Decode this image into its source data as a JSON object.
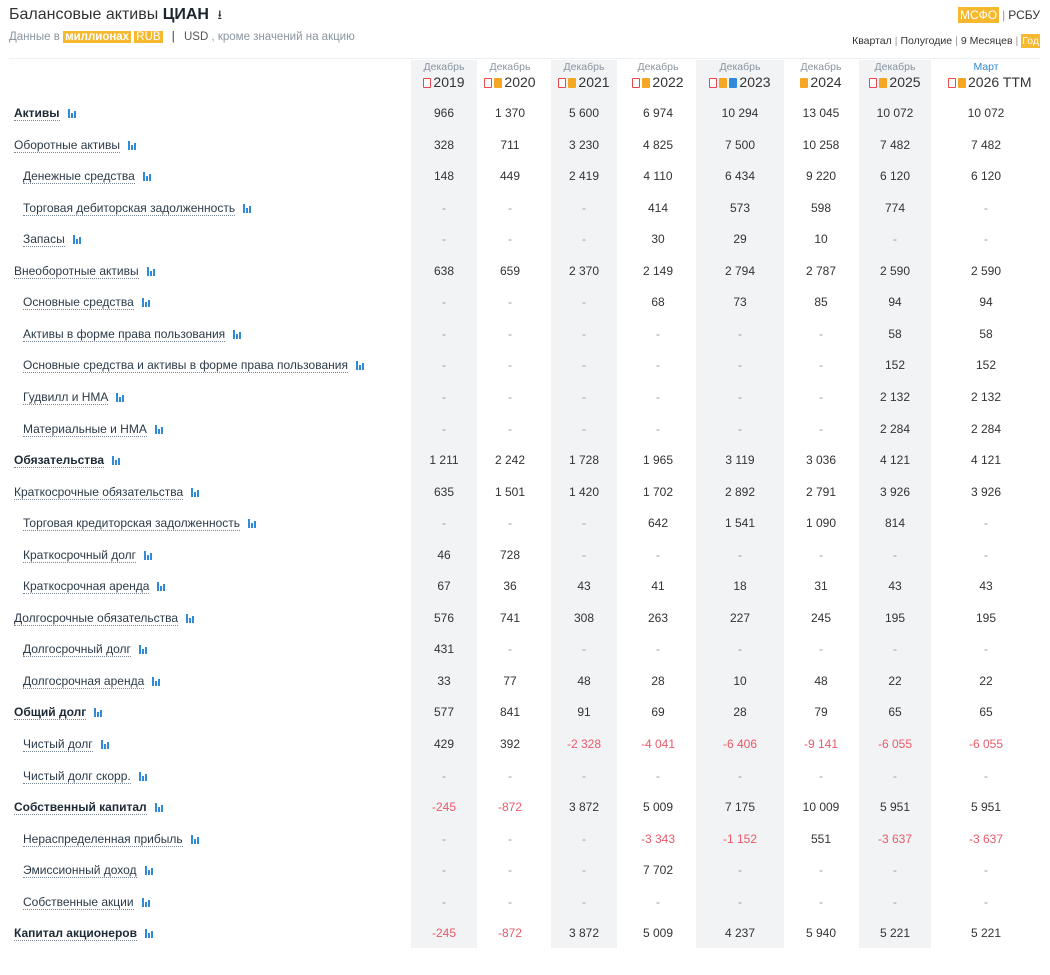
{
  "header": {
    "title": "Балансовые активы",
    "company": "ЦИАН",
    "subtitle_prefix": "Данные в",
    "units": "миллионах",
    "currency_rub": "RUB",
    "sep": "|",
    "currency_usd": "USD",
    "subtitle_suffix": ", кроме значений на акцию",
    "standards": [
      "МСФО",
      "РСБУ"
    ],
    "periods": [
      "Квартал",
      "Полугодие",
      "9 Месяцев",
      "Год"
    ]
  },
  "columns": [
    {
      "month": "Декабрь",
      "year": "2019",
      "icons": [
        "pdf"
      ]
    },
    {
      "month": "Декабрь",
      "year": "2020",
      "icons": [
        "pdf",
        "p"
      ]
    },
    {
      "month": "Декабрь",
      "year": "2021",
      "icons": [
        "pdf",
        "p"
      ]
    },
    {
      "month": "Декабрь",
      "year": "2022",
      "icons": [
        "pdf",
        "p"
      ]
    },
    {
      "month": "Декабрь",
      "year": "2023",
      "icons": [
        "pdf",
        "p",
        "x"
      ]
    },
    {
      "month": "Декабрь",
      "year": "2024",
      "icons": [
        "p"
      ]
    },
    {
      "month": "Декабрь",
      "year": "2025",
      "icons": [
        "pdf",
        "p"
      ]
    },
    {
      "month": "Март",
      "year": "2026 TTM",
      "icons": [
        "pdf",
        "p"
      ]
    }
  ],
  "rows": [
    {
      "label": "Активы",
      "bold": true,
      "indent": 0,
      "values": [
        "966",
        "1 370",
        "5 600",
        "6 974",
        "10 294",
        "13 045",
        "10 072",
        "10 072"
      ]
    },
    {
      "label": "Оборотные активы",
      "bold": false,
      "indent": 0,
      "values": [
        "328",
        "711",
        "3 230",
        "4 825",
        "7 500",
        "10 258",
        "7 482",
        "7 482"
      ]
    },
    {
      "label": "Денежные средства",
      "bold": false,
      "indent": 1,
      "values": [
        "148",
        "449",
        "2 419",
        "4 110",
        "6 434",
        "9 220",
        "6 120",
        "6 120"
      ]
    },
    {
      "label": "Торговая дебиторская задолженность",
      "bold": false,
      "indent": 1,
      "values": [
        "-",
        "-",
        "-",
        "414",
        "573",
        "598",
        "774",
        "-"
      ]
    },
    {
      "label": "Запасы",
      "bold": false,
      "indent": 1,
      "values": [
        "-",
        "-",
        "-",
        "30",
        "29",
        "10",
        "-",
        "-"
      ]
    },
    {
      "label": "Внеоборотные активы",
      "bold": false,
      "indent": 0,
      "values": [
        "638",
        "659",
        "2 370",
        "2 149",
        "2 794",
        "2 787",
        "2 590",
        "2 590"
      ]
    },
    {
      "label": "Основные средства",
      "bold": false,
      "indent": 1,
      "values": [
        "-",
        "-",
        "-",
        "68",
        "73",
        "85",
        "94",
        "94"
      ]
    },
    {
      "label": "Активы в форме права пользования",
      "bold": false,
      "indent": 1,
      "values": [
        "-",
        "-",
        "-",
        "-",
        "-",
        "-",
        "58",
        "58"
      ]
    },
    {
      "label": "Основные средства и активы в форме права пользования",
      "bold": false,
      "indent": 1,
      "values": [
        "-",
        "-",
        "-",
        "-",
        "-",
        "-",
        "152",
        "152"
      ]
    },
    {
      "label": "Гудвилл и НМА",
      "bold": false,
      "indent": 1,
      "values": [
        "-",
        "-",
        "-",
        "-",
        "-",
        "-",
        "2 132",
        "2 132"
      ]
    },
    {
      "label": "Материальные и НМА",
      "bold": false,
      "indent": 1,
      "values": [
        "-",
        "-",
        "-",
        "-",
        "-",
        "-",
        "2 284",
        "2 284"
      ]
    },
    {
      "label": "Обязательства",
      "bold": true,
      "indent": 0,
      "values": [
        "1 211",
        "2 242",
        "1 728",
        "1 965",
        "3 119",
        "3 036",
        "4 121",
        "4 121"
      ]
    },
    {
      "label": "Краткосрочные обязательства",
      "bold": false,
      "indent": 0,
      "values": [
        "635",
        "1 501",
        "1 420",
        "1 702",
        "2 892",
        "2 791",
        "3 926",
        "3 926"
      ]
    },
    {
      "label": "Торговая кредиторская задолженность",
      "bold": false,
      "indent": 1,
      "values": [
        "-",
        "-",
        "-",
        "642",
        "1 541",
        "1 090",
        "814",
        "-"
      ]
    },
    {
      "label": "Краткосрочный долг",
      "bold": false,
      "indent": 1,
      "values": [
        "46",
        "728",
        "-",
        "-",
        "-",
        "-",
        "-",
        "-"
      ]
    },
    {
      "label": "Краткосрочная аренда",
      "bold": false,
      "indent": 1,
      "values": [
        "67",
        "36",
        "43",
        "41",
        "18",
        "31",
        "43",
        "43"
      ]
    },
    {
      "label": "Долгосрочные обязательства",
      "bold": false,
      "indent": 0,
      "values": [
        "576",
        "741",
        "308",
        "263",
        "227",
        "245",
        "195",
        "195"
      ]
    },
    {
      "label": "Долгосрочный долг",
      "bold": false,
      "indent": 1,
      "values": [
        "431",
        "-",
        "-",
        "-",
        "-",
        "-",
        "-",
        "-"
      ]
    },
    {
      "label": "Долгосрочная аренда",
      "bold": false,
      "indent": 1,
      "values": [
        "33",
        "77",
        "48",
        "28",
        "10",
        "48",
        "22",
        "22"
      ]
    },
    {
      "label": "Общий долг",
      "bold": true,
      "indent": 0,
      "values": [
        "577",
        "841",
        "91",
        "69",
        "28",
        "79",
        "65",
        "65"
      ]
    },
    {
      "label": "Чистый долг",
      "bold": false,
      "indent": 1,
      "values": [
        "429",
        "392",
        "-2 328",
        "-4 041",
        "-6 406",
        "-9 141",
        "-6 055",
        "-6 055"
      ]
    },
    {
      "label": "Чистый долг скорр.",
      "bold": false,
      "indent": 1,
      "values": [
        "-",
        "-",
        "-",
        "-",
        "-",
        "-",
        "-",
        "-"
      ]
    },
    {
      "label": "Собственный капитал",
      "bold": true,
      "indent": 0,
      "values": [
        "-245",
        "-872",
        "3 872",
        "5 009",
        "7 175",
        "10 009",
        "5 951",
        "5 951"
      ]
    },
    {
      "label": "Нераспределенная прибыль",
      "bold": false,
      "indent": 1,
      "values": [
        "-",
        "-",
        "-",
        "-3 343",
        "-1 152",
        "551",
        "-3 637",
        "-3 637"
      ]
    },
    {
      "label": "Эмиссионный доход",
      "bold": false,
      "indent": 1,
      "values": [
        "-",
        "-",
        "-",
        "7 702",
        "-",
        "-",
        "-",
        "-"
      ]
    },
    {
      "label": "Собственные акции",
      "bold": false,
      "indent": 1,
      "values": [
        "-",
        "-",
        "-",
        "-",
        "-",
        "-",
        "-",
        "-"
      ]
    },
    {
      "label": "Капитал акционеров",
      "bold": true,
      "indent": 0,
      "values": [
        "-245",
        "-872",
        "3 872",
        "5 009",
        "4 237",
        "5 940",
        "5 221",
        "5 221"
      ]
    }
  ]
}
